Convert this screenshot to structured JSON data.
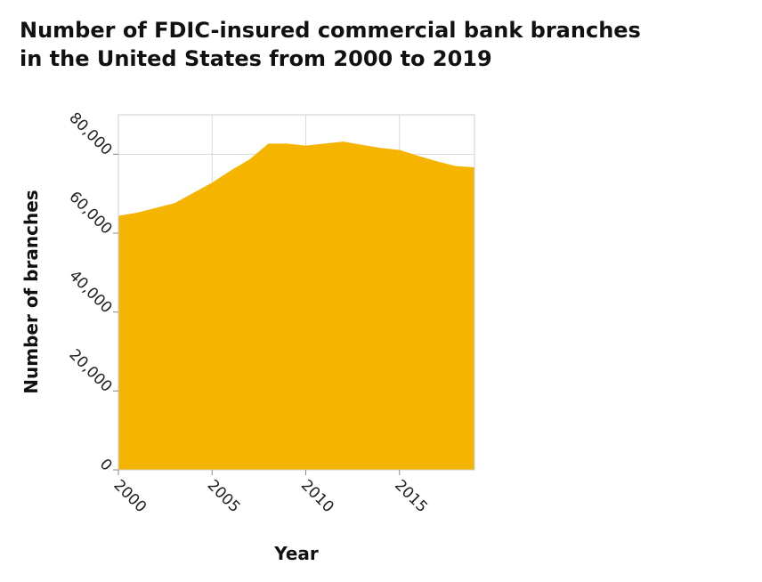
{
  "chart_data": {
    "type": "area",
    "title_lines": [
      "Number of FDIC-insured commercial bank branches",
      "in the United States from 2000 to 2019"
    ],
    "xlabel": "Year",
    "ylabel": "Number of branches",
    "x": [
      2000,
      2001,
      2002,
      2003,
      2004,
      2005,
      2006,
      2007,
      2008,
      2009,
      2010,
      2011,
      2012,
      2013,
      2014,
      2015,
      2016,
      2017,
      2018,
      2019
    ],
    "series": [
      {
        "values": [
          64400,
          65200,
          66400,
          67600,
          70200,
          72800,
          75900,
          78700,
          82700,
          82700,
          82200,
          82700,
          83200,
          82400,
          81600,
          81100,
          79600,
          78200,
          77000,
          76700
        ]
      }
    ],
    "xlim": [
      2000,
      2019
    ],
    "ylim": [
      0,
      90000
    ],
    "x_ticks": [
      2000,
      2005,
      2010,
      2015
    ],
    "x_tick_labels": [
      "2000",
      "2005",
      "2010",
      "2015"
    ],
    "y_ticks": [
      0,
      20000,
      40000,
      60000,
      80000
    ],
    "y_tick_labels": [
      "0",
      "20,000",
      "40,000",
      "60,000",
      "80,000"
    ],
    "grid": true,
    "legend": "none",
    "colors": {
      "area": "#f5b400",
      "grid": "#d9d9d9"
    }
  }
}
